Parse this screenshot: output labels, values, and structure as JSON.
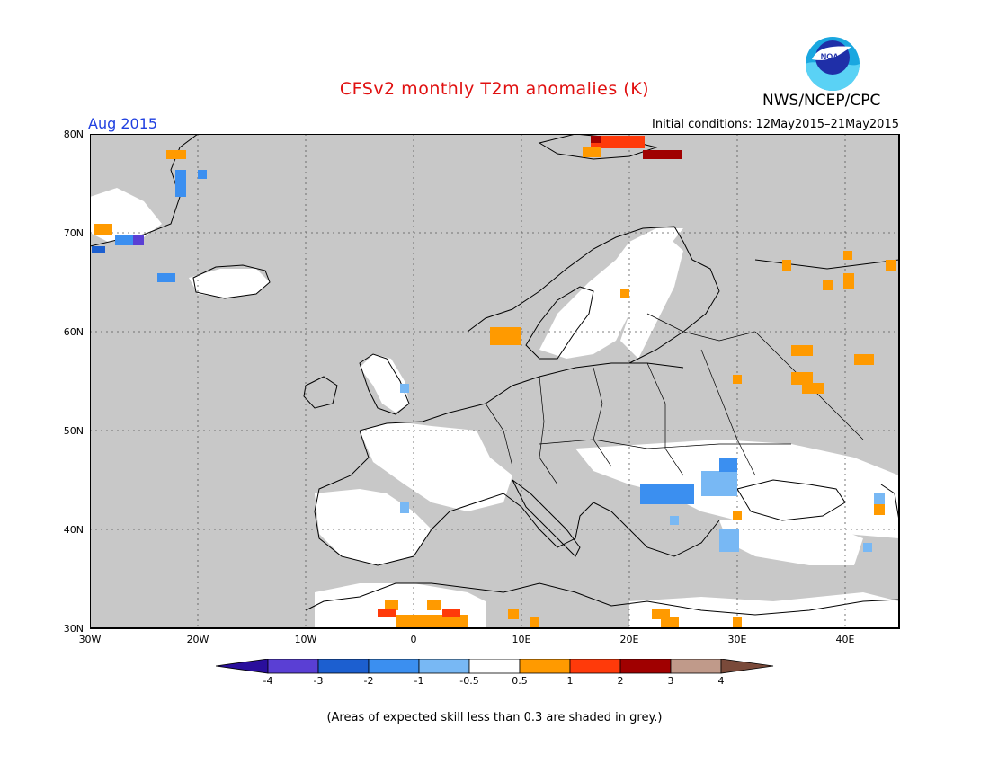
{
  "header": {
    "title": "CFSv2 monthly T2m anomalies (K)",
    "agency": "NWS/NCEP/CPC",
    "logo_text": "NOAA",
    "valid_month": "Aug 2015",
    "initial_conditions": "Initial conditions: 12May2015–21May2015"
  },
  "map": {
    "lat_labels": [
      "80N",
      "70N",
      "60N",
      "50N",
      "40N",
      "30N"
    ],
    "lon_labels": [
      "30W",
      "20W",
      "10W",
      "0",
      "10E",
      "20E",
      "30E",
      "40E"
    ],
    "colors": {
      "low_skill_grey": "#c8c8c8",
      "frame": "#000000"
    }
  },
  "colorbar": {
    "labels": [
      "-4",
      "-3",
      "-2",
      "-1",
      "-0.5",
      "0.5",
      "1",
      "2",
      "3",
      "4"
    ],
    "colors": [
      "#2a0f9c",
      "#5a3fd4",
      "#1c5fd0",
      "#3b8ff0",
      "#78b8f4",
      "#ffffff",
      "#ff9a00",
      "#ff3a0a",
      "#a00000",
      "#c09a8a",
      "#7a4a3a"
    ]
  },
  "footnote": "(Areas of expected skill less than 0.3 are shaded in grey.)"
}
